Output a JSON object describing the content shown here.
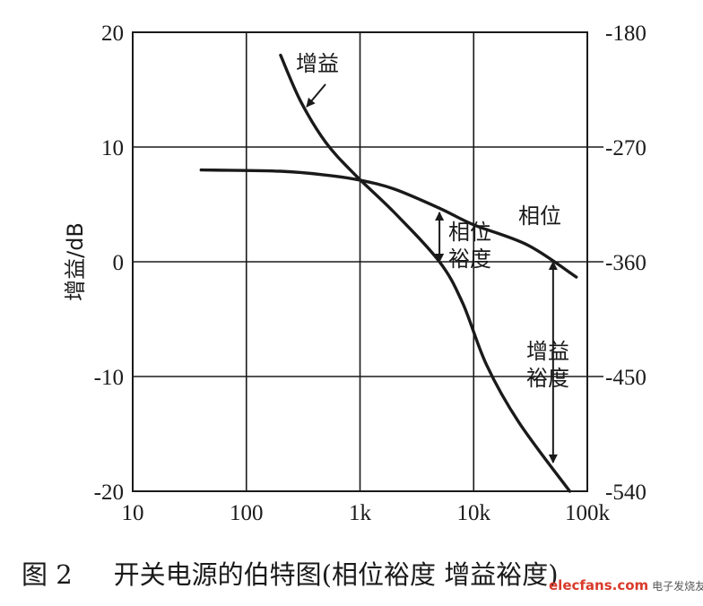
{
  "chart_data": {
    "type": "line",
    "x_scale": "log",
    "x_ticks": [
      "10",
      "100",
      "1k",
      "10k",
      "100k"
    ],
    "y_left": {
      "label": "增益/dB",
      "ticks": [
        "20",
        "10",
        "0",
        "-10",
        "-20"
      ],
      "lim": [
        -20,
        20
      ]
    },
    "y_right": {
      "ticks": [
        "-180",
        "-270",
        "-360",
        "-450",
        "-540"
      ],
      "lim": [
        -540,
        -180
      ]
    },
    "grid": true,
    "series": [
      {
        "name": "增益",
        "axis": "left",
        "points": [
          [
            200,
            18
          ],
          [
            300,
            14
          ],
          [
            500,
            10.4
          ],
          [
            900,
            7.6
          ],
          [
            2000,
            4.3
          ],
          [
            5000,
            0
          ],
          [
            8000,
            -3.6
          ],
          [
            13000,
            -9
          ],
          [
            25000,
            -14
          ],
          [
            70000,
            -20
          ]
        ]
      },
      {
        "name": "相位",
        "axis": "right",
        "points": [
          [
            40,
            -288
          ],
          [
            200,
            -289
          ],
          [
            500,
            -292
          ],
          [
            1000,
            -296
          ],
          [
            2000,
            -303
          ],
          [
            5000,
            -318
          ],
          [
            10000,
            -331
          ],
          [
            30000,
            -347
          ],
          [
            80000,
            -372
          ]
        ]
      }
    ],
    "annotations": [
      {
        "text": "增益"
      },
      {
        "text": "相位"
      },
      {
        "lines": [
          "相位",
          "裕度"
        ]
      },
      {
        "lines": [
          "增益",
          "裕度"
        ]
      }
    ],
    "margin_arrows": [
      {
        "name": "phase-margin",
        "x": 5000,
        "y_from": 4.3,
        "y_to": 0
      },
      {
        "name": "gain-margin",
        "x": 50000,
        "y_from": 0,
        "y_to": -17.5
      }
    ]
  },
  "caption": {
    "figure": "图 2",
    "title": "开关电源的伯特图(相位裕度  增益裕度)"
  },
  "watermark": {
    "site": "elecfans.com",
    "sub": "电子发烧友"
  }
}
